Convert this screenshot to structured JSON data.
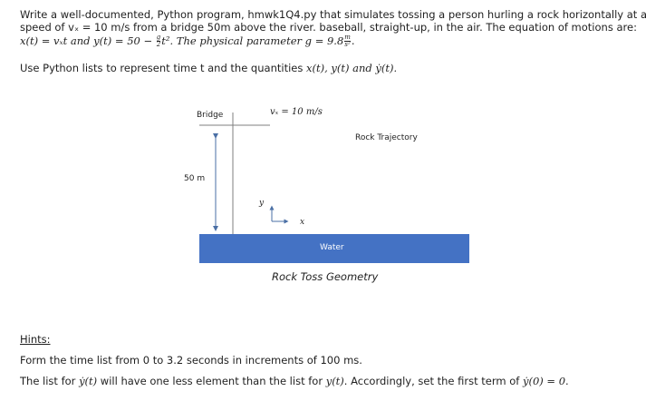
{
  "problem": {
    "line1": "Write a well-documented, Python program, hmwk1Q4.py that simulates tossing a person hurling a rock horizontally at a",
    "line2": "speed of vₓ = 10 m/s from a bridge 50m above the river. baseball, straight-up, in the air.  The equation of motions are:",
    "line3_a": "x(t) = vₓt and y(t) = 50 − ",
    "line3_frac_num": "g",
    "line3_frac_den": "2",
    "line3_b": "t².  The physical parameter g = 9.8",
    "line3_unit_num": "m",
    "line3_unit_den": "s²",
    "line3_c": ".",
    "line4_a": "Use Python lists to represent time t and the quantities ",
    "line4_b": "x(t), y(t) and ẏ(t)."
  },
  "figure": {
    "bridge_label": "Bridge",
    "velocity_label": "vₓ = 10 m/s",
    "trajectory_label": "Rock Trajectory",
    "height_label": "50 m",
    "axis_y": "y",
    "axis_x": "x",
    "water_label": "Water",
    "caption": "Rock Toss Geometry",
    "water_color": "#4472c4"
  },
  "hints": {
    "heading": "Hints:",
    "line1": "Form the time list from 0 to 3.2 seconds in increments of 100 ms.",
    "line2_a": "The list for ",
    "line2_b": "ẏ(t)",
    "line2_c": " will have one less element than the list for ",
    "line2_d": "y(t)",
    "line2_e": ".  Accordingly, set the first term of ",
    "line2_f": "ẏ(0) = 0",
    "line2_g": "."
  }
}
